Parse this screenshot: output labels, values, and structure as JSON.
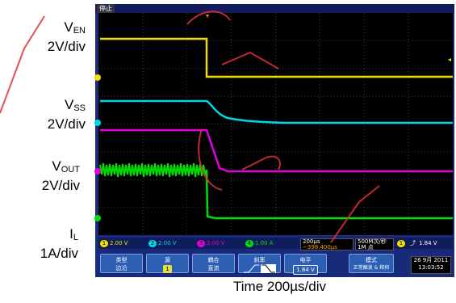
{
  "labels": {
    "ven_main": "V",
    "ven_sub": "EN",
    "ven_scale": "2V/div",
    "vss_main": "V",
    "vss_sub": "SS",
    "vss_scale": "2V/div",
    "vout_main": "V",
    "vout_sub": "OUT",
    "vout_scale": "2V/div",
    "il_main": "I",
    "il_sub": "L",
    "il_scale": "1A/div"
  },
  "scope": {
    "status": "停止",
    "channels": [
      {
        "num": "1",
        "scale": "2.00 V",
        "color": "#f0e000"
      },
      {
        "num": "2",
        "scale": "2.00 V",
        "color": "#00d8e8"
      },
      {
        "num": "3",
        "scale": "2.00 V",
        "color": "#e000e0"
      },
      {
        "num": "4",
        "scale": "1.00 A",
        "color": "#00e000"
      }
    ],
    "timebase": "200µs",
    "delay": "−398.400µs",
    "sample_rate": "500M次/秒",
    "points": "1M 点",
    "trigger_channel": "1",
    "trigger_level": "1.84 V",
    "menu": [
      {
        "title": "类型",
        "sub": "边沿",
        "value": ""
      },
      {
        "title": "源",
        "sub": "",
        "value": "1"
      },
      {
        "title": "耦合",
        "sub": "直流",
        "value": ""
      },
      {
        "title": "斜率",
        "sub": "",
        "value": ""
      },
      {
        "title": "电平",
        "sub": "",
        "value": "1.84 V"
      },
      {
        "title": "模式",
        "sub": "正常触发 & 释抑",
        "value": ""
      }
    ],
    "date": "26 9月 2011",
    "time": "13:03:52"
  },
  "xaxis": {
    "label": "Time  200µs/div"
  },
  "colors": {
    "ch1": "#f0e000",
    "ch2": "#00d8e8",
    "ch3": "#e000e0",
    "ch4": "#00e000",
    "watermark": "#e0303a"
  }
}
